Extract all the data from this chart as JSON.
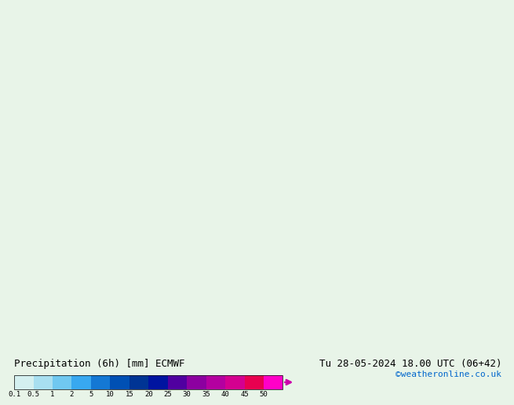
{
  "title_left": "Precipitation (6h) [mm] ECMWF",
  "title_right": "Tu 28-05-2024 18.00 UTC (06+42)",
  "subtitle_right": "©weatheronline.co.uk",
  "colorbar_levels": [
    0.1,
    0.5,
    1,
    2,
    5,
    10,
    15,
    20,
    25,
    30,
    35,
    40,
    45,
    50
  ],
  "colorbar_colors": [
    "#d4f0f0",
    "#a8dff0",
    "#70c8f0",
    "#38a8f0",
    "#1478d4",
    "#0050b4",
    "#003494",
    "#0014a0",
    "#5000a0",
    "#8c00a0",
    "#b400a0",
    "#d40090",
    "#e80050",
    "#ff00c8"
  ],
  "bg_color": "#e8f4e8",
  "map_bg": "#d8ecd8",
  "bottom_bar_color": "#f0f0f0",
  "label_color_left": "#000000",
  "label_color_right_main": "#000000",
  "label_color_right_sub": "#0066cc"
}
